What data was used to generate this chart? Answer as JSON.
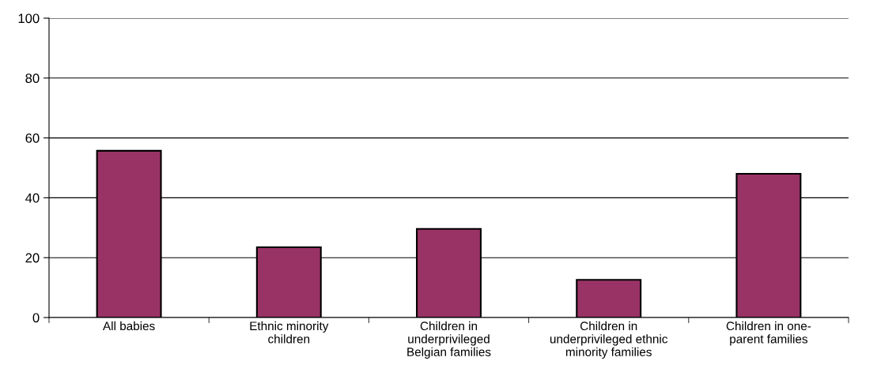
{
  "chart_data": {
    "type": "bar",
    "categories": [
      "All babies",
      "Ethnic minority\nchildren",
      "Children in\nunderprivileged\nBelgian families",
      "Children in\nunderprivileged ethnic\nminority families",
      "Children in one-\nparent families"
    ],
    "values": [
      55.7,
      23.5,
      29.6,
      12.6,
      48
    ],
    "color": "#993366",
    "ylim": [
      0,
      100
    ],
    "yticks": [
      0,
      20,
      40,
      60,
      80,
      100
    ],
    "grid": "y"
  }
}
